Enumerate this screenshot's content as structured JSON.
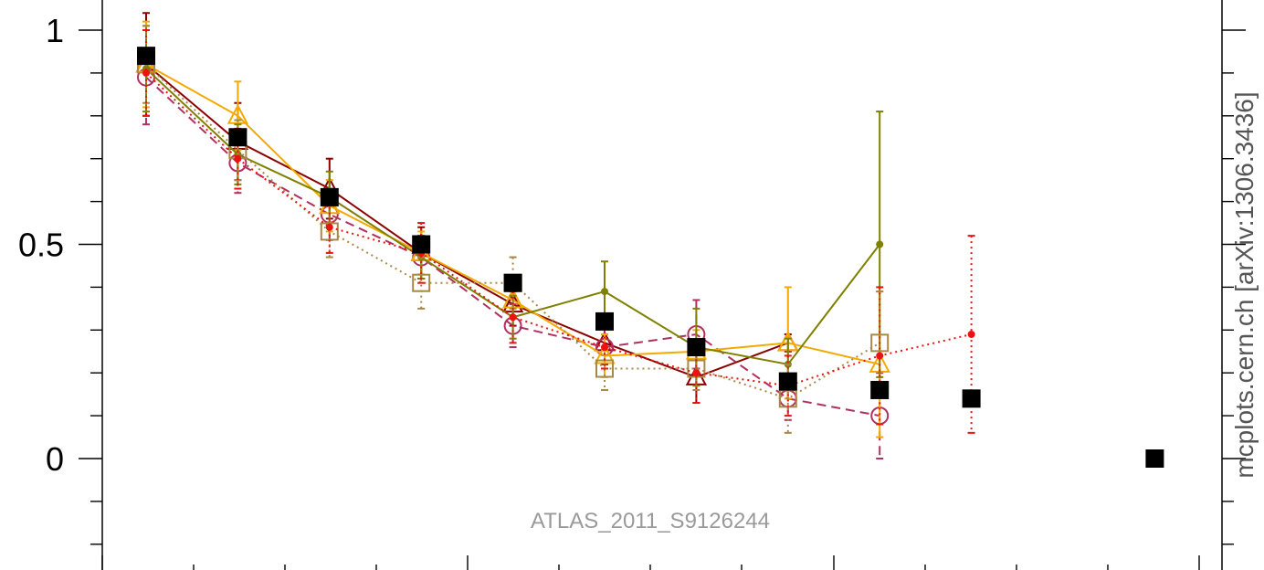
{
  "watermark": "ATLAS_2011_S9126244",
  "side_label": "mcplots.cern.ch [arXiv:1306.3436]",
  "chart_data": {
    "type": "scatter",
    "title": "",
    "xlabel": "",
    "ylabel": "",
    "x": [
      1,
      2,
      3,
      4,
      5,
      6,
      7,
      8,
      9,
      10,
      12
    ],
    "xlim": [
      0.4,
      12.7
    ],
    "ylim": [
      -0.25,
      1.07
    ],
    "y_ticks": [
      0,
      0.5,
      1
    ],
    "y_tick_labels": [
      "0",
      "0.5",
      "1"
    ],
    "grid": false,
    "series": [
      {
        "role": "data",
        "color": "#000000",
        "marker": "square-filled",
        "line": "none",
        "x": [
          1,
          2,
          3,
          4,
          5,
          6,
          7,
          8,
          9,
          10,
          12
        ],
        "values": [
          0.94,
          0.75,
          0.61,
          0.5,
          0.41,
          0.32,
          0.26,
          0.18,
          0.16,
          0.14,
          0.0
        ]
      },
      {
        "color": "#8b0000",
        "marker": "triangle",
        "line": "solid",
        "x": [
          1,
          2,
          3,
          4,
          5,
          6,
          7,
          8
        ],
        "values": [
          0.92,
          0.74,
          0.63,
          0.48,
          0.36,
          0.27,
          0.19,
          0.27
        ],
        "err": [
          0.12,
          0.09,
          0.07,
          0.06,
          0.05,
          0.05,
          0.06,
          0.02
        ]
      },
      {
        "color": "#b03060",
        "marker": "circle",
        "line": "dashed",
        "x": [
          1,
          2,
          3,
          4,
          5,
          6,
          7,
          8,
          9
        ],
        "values": [
          0.89,
          0.69,
          0.57,
          0.47,
          0.31,
          0.26,
          0.29,
          0.14,
          0.1
        ],
        "err": [
          0.11,
          0.07,
          0.06,
          0.05,
          0.05,
          0.05,
          0.08,
          0.05,
          0.1
        ]
      },
      {
        "color": "#f2a900",
        "marker": "triangle",
        "line": "solid",
        "x": [
          1,
          2,
          3,
          4,
          5,
          6,
          7,
          8,
          9
        ],
        "values": [
          0.92,
          0.8,
          0.59,
          0.48,
          0.37,
          0.24,
          0.25,
          0.27,
          0.22
        ],
        "err": [
          0.1,
          0.08,
          0.06,
          0.05,
          0.04,
          0.05,
          0.05,
          0.13,
          0.17
        ]
      },
      {
        "color": "#808000",
        "marker": "dot",
        "line": "solid",
        "x": [
          1,
          2,
          3,
          4,
          5,
          6,
          7,
          8,
          9
        ],
        "values": [
          0.91,
          0.71,
          0.61,
          0.47,
          0.33,
          0.39,
          0.26,
          0.22,
          0.5
        ],
        "err": [
          0.1,
          0.07,
          0.06,
          0.05,
          0.05,
          0.07,
          0.09,
          0.06,
          0.31
        ]
      },
      {
        "color": "#a88845",
        "marker": "square",
        "line": "dotted",
        "x": [
          1,
          2,
          3,
          4,
          5,
          6,
          7,
          8,
          9
        ],
        "values": [
          0.92,
          0.72,
          0.53,
          0.41,
          0.41,
          0.21,
          0.21,
          0.14,
          0.27
        ],
        "err": [
          0.09,
          0.07,
          0.06,
          0.06,
          0.06,
          0.05,
          0.05,
          0.08,
          0.12
        ]
      },
      {
        "color": "#ee1111",
        "marker": "dot",
        "line": "dotted",
        "x": [
          1,
          2,
          3,
          4,
          5,
          6,
          7,
          8,
          9,
          10
        ],
        "values": [
          0.9,
          0.7,
          0.54,
          0.48,
          0.33,
          0.26,
          0.2,
          0.17,
          0.24,
          0.29
        ],
        "err": [
          0.1,
          0.07,
          0.06,
          0.07,
          0.06,
          0.05,
          0.07,
          0.07,
          0.16,
          0.23
        ]
      }
    ]
  }
}
